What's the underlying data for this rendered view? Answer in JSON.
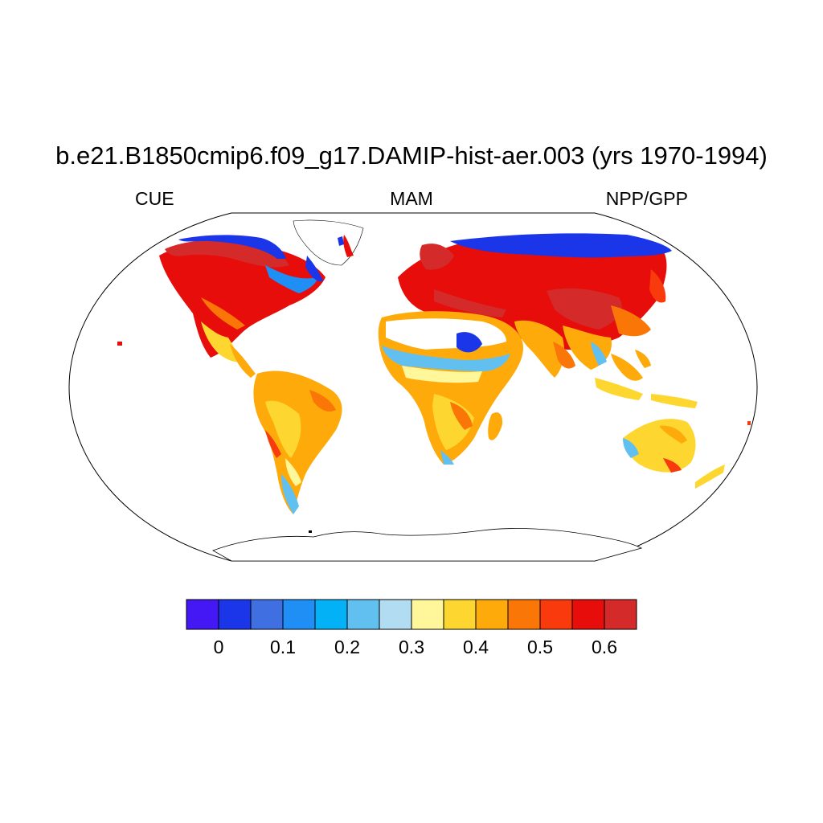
{
  "title": "b.e21.B1850cmip6.f09_g17.DAMIP-hist-aer.003 (yrs 1970-1994)",
  "labels": {
    "left": "CUE",
    "center": "MAM",
    "right": "NPP/GPP"
  },
  "map": {
    "projection": "Robinson",
    "variable": "CUE",
    "season": "MAM",
    "ocean_color": "#ffffff",
    "coastline_color": "#000000"
  },
  "colorbar": {
    "colors": [
      "#4417f5",
      "#1b36e8",
      "#3f6fe0",
      "#1f8ff5",
      "#03b2f6",
      "#62c0f0",
      "#b2dcf2",
      "#fff79a",
      "#fdd72f",
      "#fdaa0a",
      "#fa7607",
      "#f83a0c",
      "#e60d0a",
      "#d42a2a"
    ],
    "tick_labels": [
      "0",
      "0.1",
      "0.2",
      "0.3",
      "0.4",
      "0.5",
      "0.6"
    ]
  }
}
